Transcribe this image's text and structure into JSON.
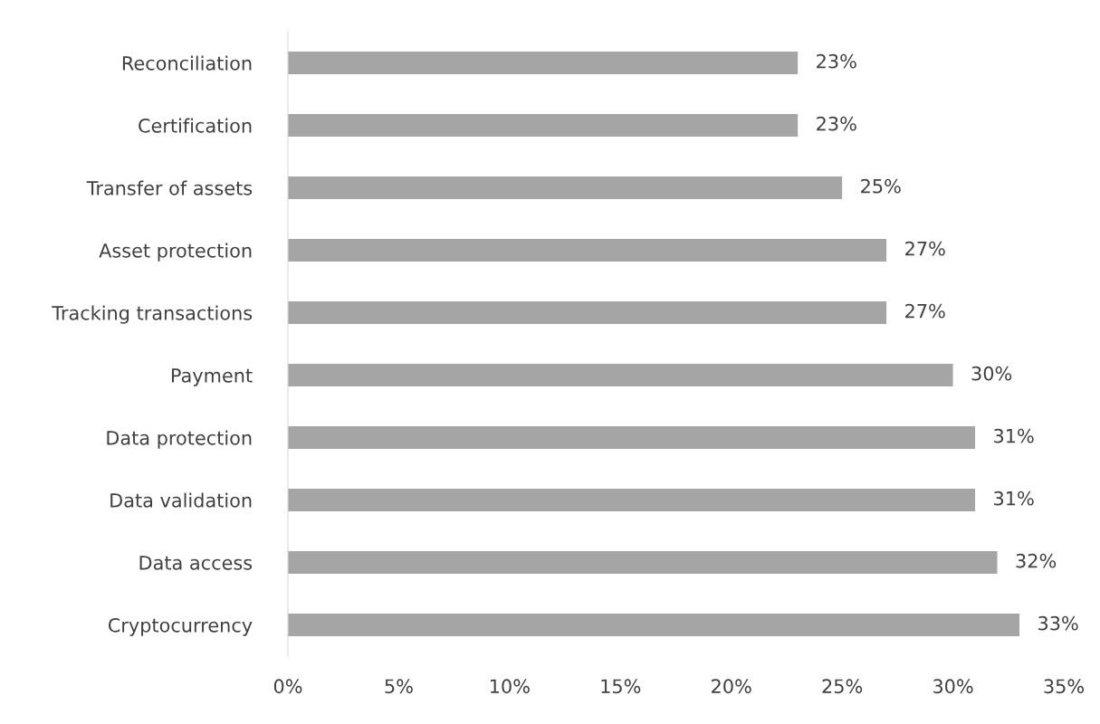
{
  "chart_data": {
    "type": "bar",
    "orientation": "horizontal",
    "categories": [
      "Reconciliation",
      "Certification",
      "Transfer of assets",
      "Asset protection",
      "Tracking transactions",
      "Payment",
      "Data protection",
      "Data validation",
      "Data access",
      "Cryptocurrency"
    ],
    "values": [
      23,
      23,
      25,
      27,
      27,
      30,
      31,
      31,
      32,
      33
    ],
    "value_labels": [
      "23%",
      "23%",
      "25%",
      "27%",
      "27%",
      "30%",
      "31%",
      "31%",
      "32%",
      "33%"
    ],
    "color": "#a5a5a5",
    "xlim": [
      0,
      35
    ],
    "xticks": [
      {
        "value": 0,
        "label": "0%"
      },
      {
        "value": 5,
        "label": "5%"
      },
      {
        "value": 10,
        "label": "10%"
      },
      {
        "value": 15,
        "label": "15%"
      },
      {
        "value": 20,
        "label": "20%"
      },
      {
        "value": 25,
        "label": "25%"
      },
      {
        "value": 30,
        "label": "30%"
      },
      {
        "value": 35,
        "label": "35%"
      }
    ],
    "grid": false
  }
}
